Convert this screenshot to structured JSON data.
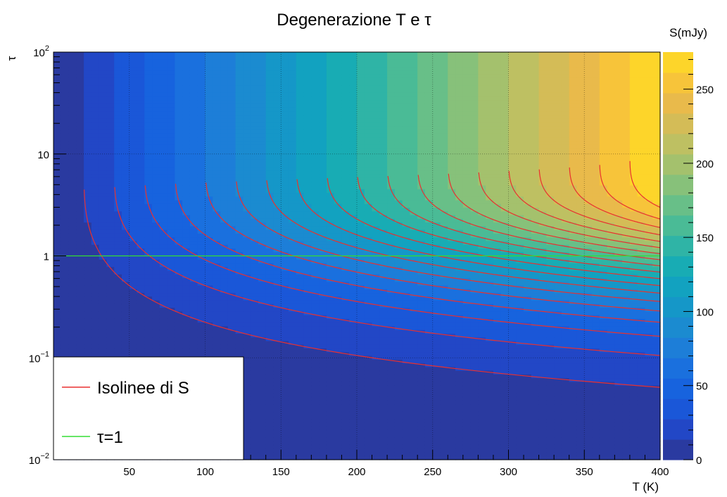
{
  "chart_data": {
    "type": "heatmap",
    "title": "Degenerazione T e τ",
    "xlabel": "T (K)",
    "ylabel": "τ",
    "zlabel": "S(mJy)",
    "x_range": [
      0,
      400
    ],
    "y_range": [
      0.01,
      100
    ],
    "y_scale": "log",
    "z_range": [
      0,
      275
    ],
    "z_levels": 20,
    "x_ticks": [
      "50",
      "100",
      "150",
      "200",
      "250",
      "300",
      "350",
      "400"
    ],
    "x_tick_values": [
      50,
      100,
      150,
      200,
      250,
      300,
      350,
      400
    ],
    "y_ticks": [
      {
        "value": 100,
        "base": "10",
        "exp": "2"
      },
      {
        "value": 10,
        "base": "10",
        "exp": ""
      },
      {
        "value": 1,
        "base": "1",
        "exp": ""
      },
      {
        "value": 0.1,
        "base": "10",
        "exp": "−1"
      },
      {
        "value": 0.01,
        "base": "10",
        "exp": "−2"
      }
    ],
    "z_ticks": [
      "0",
      "50",
      "100",
      "150",
      "200",
      "250"
    ],
    "z_tick_values": [
      0,
      50,
      100,
      150,
      200,
      250
    ],
    "palette": [
      "#2a3aa0",
      "#2247c6",
      "#1a57d8",
      "#1763de",
      "#1a70de",
      "#1d7ed8",
      "#1b8bd0",
      "#1597c8",
      "#12a2c0",
      "#18acb4",
      "#2fb4a6",
      "#4abb96",
      "#68bf88",
      "#87c17a",
      "#a4c16d",
      "#bec062",
      "#d4bc57",
      "#e9ba4b",
      "#f7c43a",
      "#fdd52a",
      "#fbea1e",
      "#f8fa12"
    ],
    "model": {
      "S_max": 275,
      "T_max": 400
    },
    "isoline_levels": [
      13.75,
      27.5,
      41.25,
      55,
      68.75,
      82.5,
      96.25,
      110,
      123.75,
      137.5,
      151.25,
      165,
      178.75,
      192.5,
      206.25,
      220,
      233.75,
      247.5,
      261.25
    ],
    "horizontal_line": {
      "y": 1,
      "color": "#33dd33",
      "label": "τ=1"
    },
    "grid": true,
    "legend": {
      "position": "bottom-left",
      "entries": [
        {
          "label": "Isolinee di S",
          "color": "#e83030"
        },
        {
          "label": "τ=1",
          "color": "#33dd33"
        }
      ]
    }
  }
}
